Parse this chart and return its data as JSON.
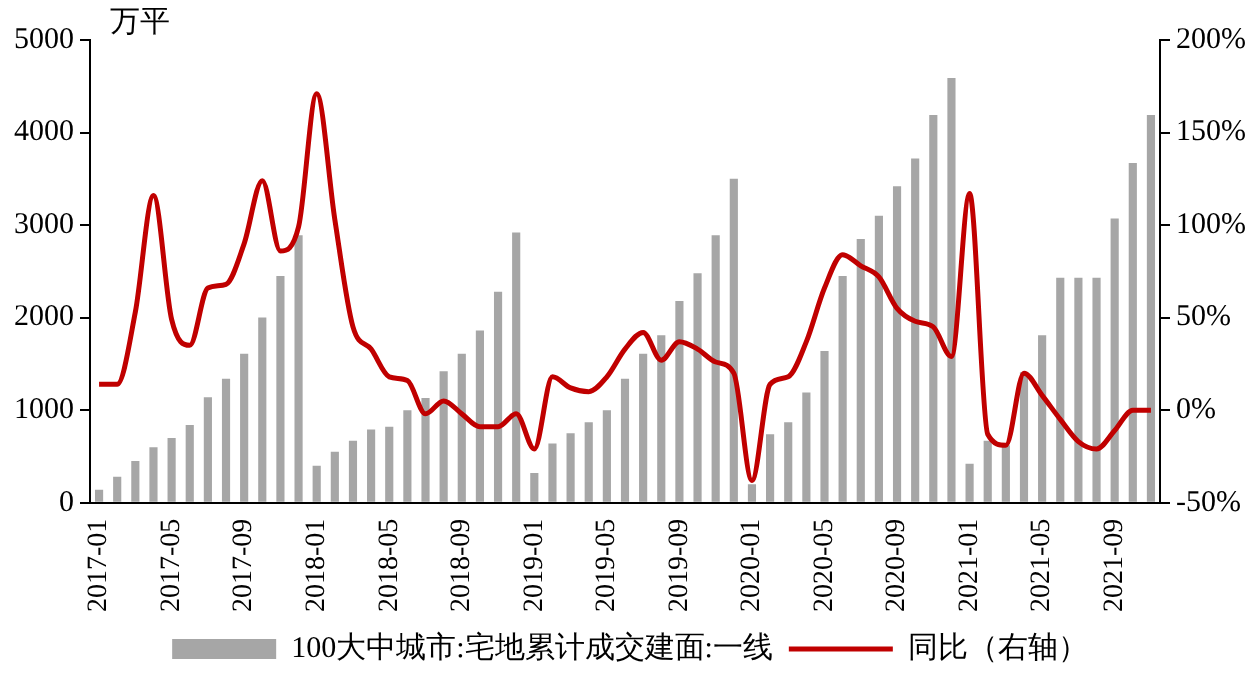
{
  "chart_data": {
    "type": "bar",
    "ylabel": "万平",
    "categories": [
      "2017-01",
      null,
      null,
      null,
      "2017-05",
      null,
      null,
      null,
      "2017-09",
      null,
      null,
      null,
      "2018-01",
      null,
      null,
      null,
      "2018-05",
      null,
      null,
      null,
      "2018-09",
      null,
      null,
      null,
      "2019-01",
      null,
      null,
      null,
      "2019-05",
      null,
      null,
      null,
      "2019-09",
      null,
      null,
      null,
      "2020-01",
      null,
      null,
      null,
      "2020-05",
      null,
      null,
      null,
      "2020-09",
      null,
      null,
      null,
      "2021-01",
      null,
      null,
      null,
      "2021-05",
      null,
      null,
      null,
      "2021-09",
      null,
      null
    ],
    "series": [
      {
        "name": "100大中城市:宅地累计成交建面:一线",
        "color": "#a6a6a6",
        "values": [
          140,
          280,
          450,
          600,
          700,
          840,
          1140,
          1340,
          1610,
          2000,
          2450,
          2890,
          400,
          550,
          670,
          790,
          820,
          1000,
          1130,
          1420,
          1610,
          1860,
          2280,
          2920,
          320,
          640,
          750,
          870,
          1000,
          1340,
          1610,
          1810,
          2180,
          2480,
          2890,
          3500,
          200,
          740,
          870,
          1190,
          1640,
          2450,
          2850,
          3100,
          3420,
          3720,
          4190,
          4590,
          420,
          670,
          620,
          1410,
          1810,
          2430,
          2430,
          2430,
          3070,
          3670,
          4190
        ]
      },
      {
        "name": "同比（右轴）",
        "type": "line",
        "axis": "y2",
        "color": "#c00000",
        "values": [
          14,
          14,
          53,
          116,
          49,
          35,
          66,
          68,
          90,
          124,
          86,
          99,
          171,
          103,
          45,
          33,
          18,
          16,
          -2,
          5,
          -2,
          -9,
          -9,
          -2,
          -21,
          18,
          12,
          10,
          18,
          33,
          42,
          27,
          37,
          33,
          26,
          20,
          -38,
          14,
          18,
          37,
          66,
          84,
          78,
          72,
          55,
          48,
          45,
          29,
          117,
          -13,
          -19,
          20,
          8,
          -5,
          -17,
          -21,
          -11,
          0,
          0
        ]
      }
    ],
    "ylim": [
      0,
      5000
    ],
    "yticks": [
      0,
      1000,
      2000,
      3000,
      4000,
      5000
    ],
    "y2lim": [
      -50,
      200
    ],
    "y2ticks": [
      {
        "value": -50,
        "label": "-50%"
      },
      {
        "value": 0,
        "label": "0%"
      },
      {
        "value": 50,
        "label": "50%"
      },
      {
        "value": 100,
        "label": "100%"
      },
      {
        "value": 150,
        "label": "150%"
      },
      {
        "value": 200,
        "label": "200%"
      }
    ],
    "legend": "bottom",
    "grid": false,
    "marker": "none",
    "line_style": "solid"
  }
}
